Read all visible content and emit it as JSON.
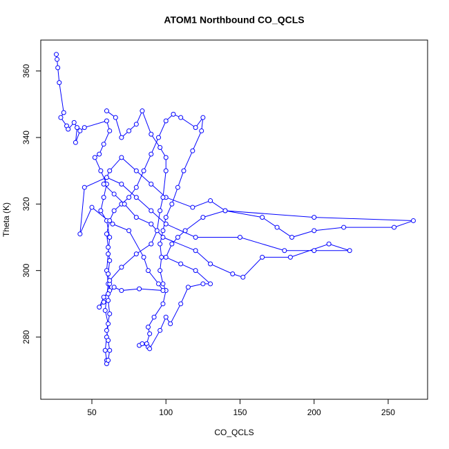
{
  "chart_data": {
    "type": "line",
    "markers": true,
    "title": "ATOM1 Northbound CO_QCLS",
    "xlabel": "CO_QCLS",
    "ylabel": "Theta (K)",
    "color": "#0000ff",
    "xlim": [
      15.5,
      276.6
    ],
    "ylim": [
      261.3,
      369.3
    ],
    "xticks": [
      50,
      100,
      150,
      200,
      250
    ],
    "yticks": [
      280,
      300,
      320,
      340,
      360
    ],
    "x": [
      26,
      26.5,
      27,
      28,
      31,
      29,
      33,
      34,
      38,
      40,
      39,
      42,
      45,
      60,
      62,
      58,
      55,
      52,
      56,
      60,
      58,
      56,
      60,
      62,
      61,
      60,
      61,
      60,
      59,
      61,
      60,
      59,
      60,
      60,
      61,
      62,
      61,
      60,
      62,
      61,
      58,
      55,
      58,
      62,
      62,
      61,
      62,
      61,
      60,
      62,
      65,
      70,
      75,
      80,
      85,
      90,
      95,
      100,
      105,
      110,
      120,
      125,
      124,
      118,
      112,
      108,
      104,
      100,
      98,
      96,
      97,
      96,
      98,
      100,
      98,
      92,
      88,
      89,
      87,
      82,
      84,
      88,
      89,
      96,
      100,
      103,
      110,
      115,
      125,
      130,
      120,
      110,
      100,
      104,
      108,
      113,
      125,
      140,
      165,
      175,
      185,
      200,
      220,
      254,
      267,
      200,
      140,
      130,
      118,
      100,
      90,
      80,
      70,
      62,
      58,
      65,
      72,
      80,
      90,
      98,
      120,
      130,
      145,
      152,
      165,
      184,
      210,
      224,
      200,
      180,
      150,
      120,
      100,
      90,
      80,
      70,
      60,
      45,
      42,
      50,
      64,
      75,
      85,
      88,
      95,
      98,
      82,
      70,
      65,
      61,
      62,
      70,
      80,
      90,
      94,
      96,
      98,
      100,
      100,
      96,
      90,
      84,
      80,
      75,
      70,
      66,
      60
    ],
    "y": [
      365,
      363.5,
      361,
      356.5,
      347.5,
      346,
      343.5,
      342.5,
      344.5,
      343,
      338.5,
      342,
      343,
      345,
      342,
      338,
      335,
      334,
      330,
      326,
      322,
      318,
      315,
      310,
      305,
      300,
      296,
      292,
      288,
      284,
      280,
      276,
      273,
      272,
      273,
      276,
      279,
      282,
      287,
      291,
      290.5,
      289,
      292,
      294,
      296,
      299,
      303,
      307,
      311,
      315,
      318,
      320,
      322,
      325,
      330,
      335,
      340,
      345,
      347,
      346,
      343,
      346,
      342,
      336,
      330,
      325,
      320,
      316,
      312,
      308,
      304,
      300,
      296,
      294,
      290,
      286,
      283,
      281,
      278,
      277.5,
      278,
      277,
      276.5,
      282,
      286,
      284,
      290,
      295,
      296,
      296,
      300,
      302,
      304,
      308,
      310,
      312,
      316,
      318,
      316,
      313,
      310,
      312,
      313,
      313,
      315,
      316,
      318,
      321,
      319,
      322,
      326,
      330,
      334,
      330,
      326,
      323,
      320,
      316,
      314,
      310,
      306,
      302,
      299,
      298,
      304,
      304,
      308,
      306,
      306,
      306,
      310,
      310,
      314,
      318,
      322,
      326,
      328,
      325,
      311,
      319,
      314,
      312,
      304,
      300,
      296,
      294,
      294.5,
      294,
      295,
      293,
      297,
      301,
      305,
      308,
      312,
      318,
      322,
      330,
      334,
      337,
      341,
      348,
      344,
      342,
      340,
      346,
      348
    ]
  }
}
